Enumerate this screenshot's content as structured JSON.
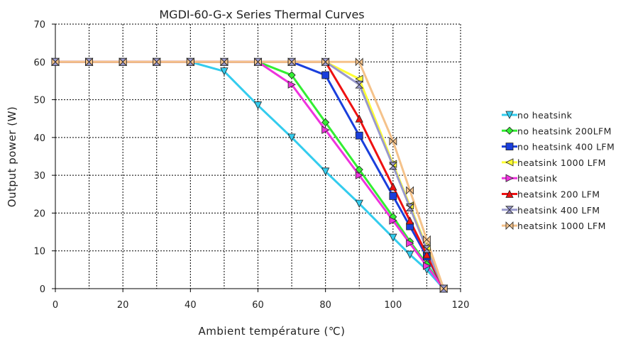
{
  "chart_data": {
    "type": "line",
    "title": "MGDI-60-G-x Series Thermal Curves",
    "xlabel": "Ambient température (℃)",
    "ylabel": "Output power (W)",
    "xlim": [
      0,
      120
    ],
    "ylim": [
      0,
      70
    ],
    "xticks": [
      0,
      20,
      40,
      60,
      80,
      100,
      120
    ],
    "yticks": [
      0,
      10,
      20,
      30,
      40,
      50,
      60,
      70
    ],
    "grid": true,
    "legend_position": "right",
    "series": [
      {
        "name": "no heatsink",
        "color": "#33ccee",
        "marker": "triangle-down",
        "x": [
          0,
          10,
          20,
          30,
          40,
          50,
          60,
          70,
          80,
          90,
          100,
          105,
          110,
          115
        ],
        "y": [
          60,
          60,
          60,
          60,
          60,
          57.5,
          48.5,
          40,
          31,
          22.5,
          13.5,
          9,
          5,
          0
        ]
      },
      {
        "name": "no heatsink 200LFM",
        "color": "#33ee33",
        "marker": "diamond",
        "x": [
          0,
          10,
          20,
          30,
          40,
          50,
          60,
          70,
          80,
          90,
          100,
          105,
          110,
          115
        ],
        "y": [
          60,
          60,
          60,
          60,
          60,
          60,
          60,
          56.5,
          44,
          31.5,
          19,
          12.5,
          6.5,
          0
        ]
      },
      {
        "name": "no heatsink 400 LFM",
        "color": "#1a3fdc",
        "marker": "square",
        "x": [
          0,
          10,
          20,
          30,
          40,
          50,
          60,
          70,
          80,
          90,
          100,
          105,
          110,
          115
        ],
        "y": [
          60,
          60,
          60,
          60,
          60,
          60,
          60,
          60,
          56.5,
          40.5,
          24.5,
          16.5,
          8.5,
          0
        ]
      },
      {
        "name": "heatsink 1000 LFM",
        "color": "#ffff33",
        "marker": "triangle-left",
        "x": [
          0,
          10,
          20,
          30,
          40,
          50,
          60,
          70,
          80,
          90,
          100,
          105,
          110,
          115
        ],
        "y": [
          60,
          60,
          60,
          60,
          60,
          60,
          60,
          60,
          60,
          55.5,
          33,
          22,
          11,
          0
        ]
      },
      {
        "name": "heatsink",
        "color": "#ee33dd",
        "marker": "triangle-right",
        "x": [
          0,
          10,
          20,
          30,
          40,
          50,
          60,
          70,
          80,
          90,
          100,
          105,
          110,
          115
        ],
        "y": [
          60,
          60,
          60,
          60,
          60,
          60,
          60,
          54,
          42,
          30,
          18,
          12,
          6,
          0
        ]
      },
      {
        "name": "heatsink 200 LFM",
        "color": "#ee1111",
        "marker": "triangle-up",
        "x": [
          0,
          10,
          20,
          30,
          40,
          50,
          60,
          70,
          80,
          90,
          100,
          105,
          110,
          115
        ],
        "y": [
          60,
          60,
          60,
          60,
          60,
          60,
          60,
          60,
          60,
          45,
          27,
          18,
          9,
          0
        ]
      },
      {
        "name": "heatsink 400 LFM",
        "color": "#9999cc",
        "marker": "hourglass",
        "x": [
          0,
          10,
          20,
          30,
          40,
          50,
          60,
          70,
          80,
          90,
          100,
          105,
          110,
          115
        ],
        "y": [
          60,
          60,
          60,
          60,
          60,
          60,
          60,
          60,
          60,
          54,
          32.5,
          21.5,
          10.5,
          0
        ]
      },
      {
        "name": "heatsink 1000 LFM",
        "color": "#f5c28a",
        "marker": "bowtie",
        "x": [
          0,
          10,
          20,
          30,
          40,
          50,
          60,
          70,
          80,
          90,
          100,
          105,
          110,
          115
        ],
        "y": [
          60,
          60,
          60,
          60,
          60,
          60,
          60,
          60,
          60,
          60,
          39,
          26,
          13,
          0
        ]
      }
    ]
  }
}
